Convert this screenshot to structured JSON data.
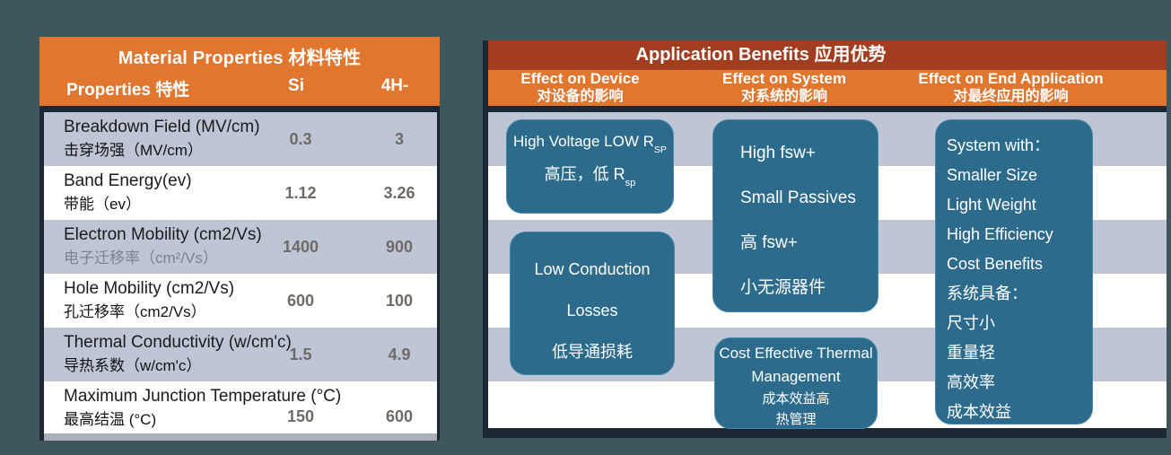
{
  "colors": {
    "slide_background": "#3E575D",
    "header_orange": "#E1762F",
    "title_dark_red": "#A23D1F",
    "stripe_gray": "#BEC5D4",
    "box_teal": "#2D6B8D",
    "border_navy": "#1B2733",
    "value_gray": "#6F6A66",
    "spellcheck_underline_red": "#E00000"
  },
  "left_panel": {
    "title": "Material Properties 材料特性",
    "columns": {
      "property": "Properties 特性",
      "si": "Si",
      "sic": "4H-"
    },
    "rows": [
      {
        "en": "Breakdown Field (MV/cm)",
        "zh": "击穿场强（MV/cm）",
        "si": "0.3",
        "sic": "3"
      },
      {
        "en": "Band Energy(ev)",
        "zh": "带能（ev）",
        "si": "1.12",
        "sic": "3.26"
      },
      {
        "en": "Electron Mobility (cm2/Vs)",
        "zh": "电子迁移率（cm²/Vs）",
        "si": "1400",
        "sic": "900"
      },
      {
        "en": "Hole Mobility (cm2/Vs)",
        "zh": "孔迁移率（cm2/Vs）",
        "si": "600",
        "sic": "100"
      },
      {
        "en": "Thermal Conductivity (w/cm'c)",
        "zh": "导热系数（w/cm'c）",
        "si": "1.5",
        "sic": "4.9"
      },
      {
        "en": "Maximum Junction Temperature (°C)",
        "zh": "最高结温 (°C)",
        "si": "150",
        "sic": "600"
      }
    ]
  },
  "right_panel": {
    "title": "Application Benefits 应用优势",
    "columns": [
      {
        "en": "Effect on Device",
        "zh": "对设备的影响"
      },
      {
        "en": "Effect on System",
        "zh": "对系统的影响"
      },
      {
        "en": "Effect on End Application",
        "zh": "对最终应用的影响"
      }
    ],
    "boxes": {
      "high_voltage": {
        "line1_pre": "High Voltage LOW R",
        "line1_sub": "SP",
        "line2_pre": "高压，低 R",
        "line2_sub": "sp"
      },
      "low_conduction": {
        "lines": [
          "Low Conduction",
          "Losses",
          "低导通损耗"
        ]
      },
      "high_fsw": {
        "lines": [
          "High fsw+",
          "Small Passives",
          "高 fsw+",
          "小无源器件"
        ]
      },
      "thermal": {
        "lines": [
          "Cost Effective Thermal",
          "Management",
          "成本效益高",
          "热管理"
        ]
      },
      "system": {
        "lines": [
          "System with：",
          "Smaller Size",
          "Light Weight",
          "High Efficiency",
          "Cost Benefits",
          "系统具备：",
          "尺寸小",
          "重量轻",
          "高效率",
          "成本效益"
        ]
      }
    }
  }
}
